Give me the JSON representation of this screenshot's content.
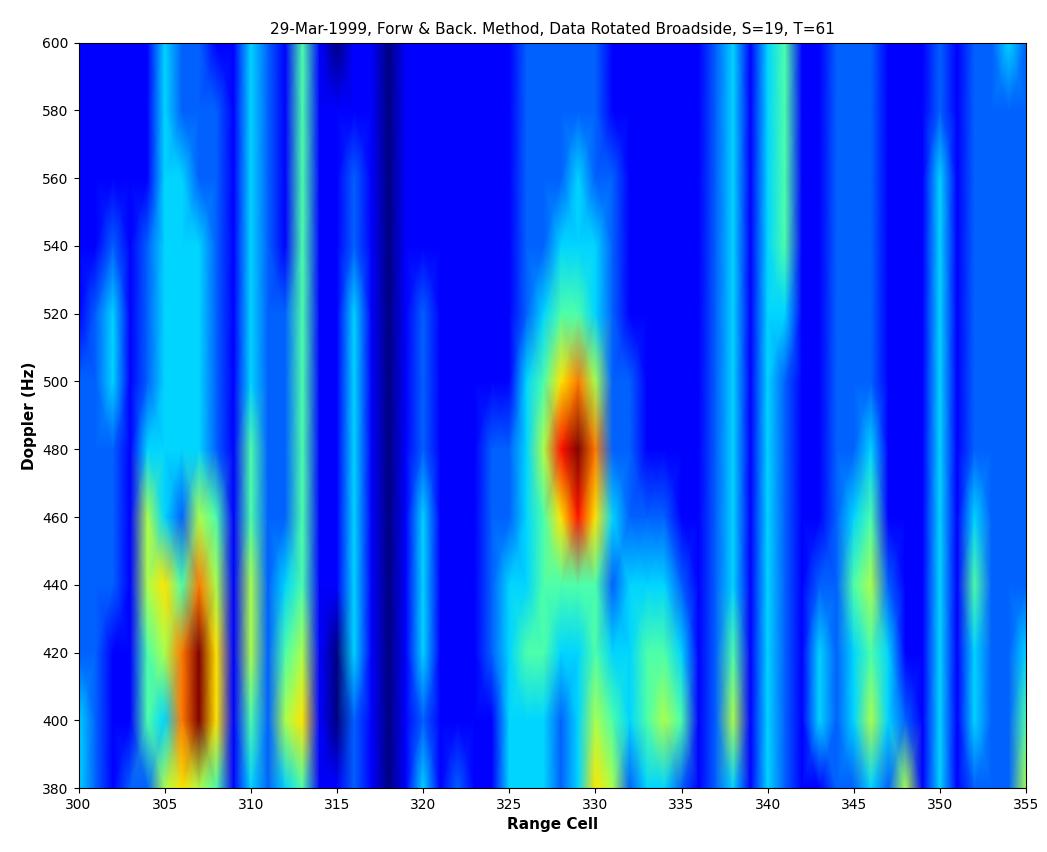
{
  "chart_data": {
    "type": "heatmap",
    "title": "29-Mar-1999, Forw & Back. Method, Data Rotated Broadside, S=19, T=61",
    "x_label": "Range Cell",
    "y_label": "Doppler (Hz)",
    "x": [
      300,
      301,
      302,
      303,
      304,
      305,
      306,
      307,
      308,
      309,
      310,
      311,
      312,
      313,
      314,
      315,
      316,
      317,
      318,
      319,
      320,
      321,
      322,
      323,
      324,
      325,
      326,
      327,
      328,
      329,
      330,
      331,
      332,
      333,
      334,
      335,
      336,
      337,
      338,
      339,
      340,
      341,
      342,
      343,
      344,
      345,
      346,
      347,
      348,
      349,
      350,
      351,
      352,
      353,
      354,
      355
    ],
    "y": [
      380,
      400,
      420,
      440,
      460,
      480,
      500,
      520,
      540,
      560,
      580,
      600
    ],
    "xlim": [
      300,
      355
    ],
    "ylim": [
      380,
      600
    ],
    "xticks": [
      300,
      305,
      310,
      315,
      320,
      325,
      330,
      335,
      340,
      345,
      350,
      355
    ],
    "yticks": [
      380,
      400,
      420,
      440,
      460,
      480,
      500,
      520,
      540,
      560,
      580,
      600
    ],
    "grid": false,
    "cells_by_x": [
      [
        3,
        3,
        2,
        2,
        2,
        2,
        2,
        1,
        1,
        1,
        1,
        1
      ],
      [
        2,
        2,
        2,
        2,
        2,
        2,
        2,
        2,
        1,
        1,
        1,
        1
      ],
      [
        1,
        1,
        1,
        2,
        2,
        2,
        3,
        3,
        2,
        1,
        1,
        1
      ],
      [
        2,
        1,
        1,
        1,
        1,
        1,
        1,
        1,
        1,
        1,
        1,
        1
      ],
      [
        2,
        4,
        4,
        5,
        5,
        3,
        2,
        2,
        2,
        1,
        1,
        1
      ],
      [
        5,
        3,
        5,
        6,
        3,
        3,
        3,
        3,
        3,
        3,
        3,
        3
      ],
      [
        6,
        7,
        7,
        4,
        2,
        3,
        3,
        3,
        3,
        3,
        2,
        2
      ],
      [
        5,
        9,
        9,
        7,
        5,
        3,
        3,
        3,
        3,
        2,
        2,
        2
      ],
      [
        4,
        6,
        6,
        5,
        4,
        2,
        2,
        2,
        2,
        2,
        2,
        1
      ],
      [
        1,
        1,
        1,
        1,
        1,
        1,
        1,
        1,
        1,
        1,
        1,
        1
      ],
      [
        3,
        4,
        5,
        5,
        4,
        4,
        3,
        3,
        3,
        3,
        3,
        3
      ],
      [
        2,
        2,
        2,
        2,
        2,
        2,
        2,
        2,
        2,
        2,
        2,
        2
      ],
      [
        3,
        5,
        4,
        3,
        2,
        2,
        2,
        2,
        1,
        1,
        1,
        1
      ],
      [
        4,
        6,
        5,
        4,
        4,
        4,
        4,
        4,
        4,
        4,
        4,
        4
      ],
      [
        1,
        1,
        1,
        1,
        1,
        1,
        1,
        1,
        1,
        1,
        1,
        1
      ],
      [
        1,
        0,
        0,
        1,
        1,
        1,
        1,
        1,
        1,
        1,
        1,
        0
      ],
      [
        2,
        2,
        3,
        3,
        3,
        3,
        3,
        3,
        2,
        2,
        1,
        1
      ],
      [
        1,
        1,
        1,
        1,
        1,
        1,
        1,
        1,
        1,
        1,
        1,
        1
      ],
      [
        0,
        0,
        0,
        0,
        0,
        0,
        0,
        0,
        0,
        0,
        0,
        0
      ],
      [
        1,
        1,
        1,
        1,
        1,
        1,
        1,
        1,
        1,
        1,
        1,
        1
      ],
      [
        3,
        2,
        3,
        3,
        3,
        2,
        2,
        2,
        1,
        1,
        1,
        1
      ],
      [
        1,
        1,
        1,
        1,
        1,
        1,
        1,
        1,
        1,
        1,
        1,
        1
      ],
      [
        2,
        1,
        1,
        1,
        1,
        1,
        1,
        1,
        1,
        1,
        1,
        1
      ],
      [
        1,
        1,
        1,
        1,
        1,
        1,
        1,
        1,
        1,
        1,
        1,
        1
      ],
      [
        1,
        1,
        2,
        2,
        2,
        2,
        1,
        1,
        1,
        1,
        1,
        1
      ],
      [
        3,
        3,
        3,
        3,
        2,
        2,
        1,
        1,
        1,
        1,
        1,
        1
      ],
      [
        3,
        3,
        4,
        3,
        3,
        3,
        3,
        2,
        2,
        2,
        2,
        2
      ],
      [
        3,
        3,
        4,
        4,
        4,
        5,
        4,
        3,
        2,
        2,
        2,
        2
      ],
      [
        2,
        2,
        3,
        4,
        6,
        8,
        6,
        4,
        3,
        2,
        2,
        2
      ],
      [
        3,
        3,
        3,
        4,
        8,
        9,
        7,
        4,
        3,
        3,
        2,
        2
      ],
      [
        6,
        5,
        4,
        4,
        6,
        7,
        5,
        3,
        3,
        2,
        2,
        2
      ],
      [
        5,
        4,
        3,
        2,
        3,
        2,
        2,
        2,
        2,
        2,
        1,
        1
      ],
      [
        2,
        3,
        3,
        3,
        2,
        2,
        2,
        1,
        1,
        1,
        1,
        1
      ],
      [
        3,
        4,
        4,
        3,
        2,
        1,
        1,
        1,
        1,
        1,
        1,
        1
      ],
      [
        3,
        5,
        4,
        3,
        2,
        1,
        1,
        1,
        1,
        1,
        1,
        1
      ],
      [
        2,
        4,
        3,
        2,
        1,
        1,
        1,
        1,
        1,
        1,
        1,
        1
      ],
      [
        1,
        1,
        1,
        1,
        1,
        1,
        1,
        1,
        1,
        1,
        1,
        1
      ],
      [
        2,
        2,
        2,
        2,
        2,
        2,
        2,
        2,
        2,
        2,
        2,
        2
      ],
      [
        3,
        5,
        4,
        3,
        3,
        3,
        3,
        3,
        3,
        3,
        3,
        3
      ],
      [
        1,
        1,
        1,
        1,
        1,
        1,
        1,
        1,
        1,
        1,
        1,
        1
      ],
      [
        3,
        3,
        3,
        3,
        3,
        3,
        3,
        3,
        3,
        3,
        3,
        3
      ],
      [
        2,
        2,
        2,
        2,
        2,
        2,
        2,
        3,
        4,
        4,
        4,
        4
      ],
      [
        1,
        1,
        1,
        1,
        1,
        1,
        1,
        1,
        1,
        1,
        1,
        1
      ],
      [
        1,
        3,
        3,
        2,
        1,
        1,
        1,
        1,
        1,
        1,
        1,
        1
      ],
      [
        2,
        2,
        2,
        2,
        2,
        2,
        2,
        2,
        2,
        2,
        2,
        2
      ],
      [
        2,
        3,
        3,
        4,
        3,
        2,
        2,
        2,
        2,
        2,
        2,
        2
      ],
      [
        3,
        5,
        4,
        5,
        4,
        3,
        2,
        2,
        2,
        2,
        2,
        2
      ],
      [
        2,
        3,
        3,
        2,
        1,
        1,
        1,
        1,
        1,
        1,
        1,
        1
      ],
      [
        5,
        2,
        1,
        1,
        1,
        1,
        1,
        1,
        1,
        1,
        1,
        1
      ],
      [
        1,
        1,
        1,
        1,
        1,
        1,
        1,
        1,
        1,
        1,
        1,
        1
      ],
      [
        3,
        3,
        3,
        3,
        3,
        3,
        3,
        3,
        3,
        3,
        2,
        2
      ],
      [
        1,
        1,
        1,
        1,
        1,
        1,
        1,
        1,
        1,
        1,
        1,
        1
      ],
      [
        2,
        3,
        3,
        4,
        3,
        2,
        2,
        2,
        2,
        2,
        2,
        2
      ],
      [
        2,
        2,
        2,
        2,
        2,
        2,
        2,
        2,
        2,
        2,
        2,
        2
      ],
      [
        2,
        2,
        2,
        2,
        2,
        2,
        2,
        2,
        2,
        2,
        2,
        3
      ],
      [
        5,
        4,
        3,
        2,
        2,
        2,
        2,
        2,
        2,
        2,
        2,
        2
      ]
    ]
  }
}
